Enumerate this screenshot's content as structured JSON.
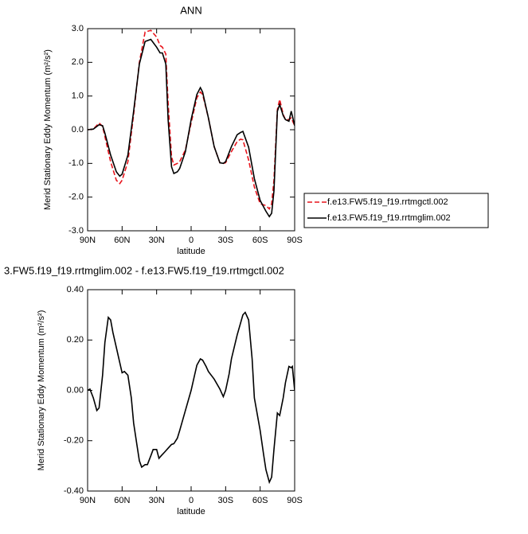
{
  "chart_data": [
    {
      "type": "line",
      "title": "ANN",
      "x_label": "latitude",
      "y_label": "Merid Stationary Eddy Momentum (m²/s²)",
      "x": [
        90,
        85,
        80,
        77,
        75,
        70,
        65,
        62,
        60,
        55,
        50,
        45,
        40,
        35,
        30,
        27,
        25,
        22,
        20,
        17,
        15,
        12,
        10,
        5,
        0,
        -5,
        -8,
        -10,
        -15,
        -20,
        -25,
        -28,
        -30,
        -35,
        -40,
        -43,
        -45,
        -50,
        -55,
        -60,
        -65,
        -68,
        -70,
        -72,
        -75,
        -77,
        -80,
        -82,
        -85,
        -87,
        -90
      ],
      "xlim": [
        90,
        -90
      ],
      "xticks": [
        {
          "value": 90,
          "label": "90N"
        },
        {
          "value": 60,
          "label": "60N"
        },
        {
          "value": 30,
          "label": "30N"
        },
        0,
        {
          "value": -30,
          "label": "30S"
        },
        {
          "value": -60,
          "label": "60S"
        },
        {
          "value": -90,
          "label": "90S"
        }
      ],
      "ylim": [
        -3,
        3
      ],
      "yticks": [
        {
          "value": 3,
          "label": "3.0"
        },
        {
          "value": 2,
          "label": "2.0"
        },
        {
          "value": 1,
          "label": "1.0"
        },
        {
          "value": 0,
          "label": "0.0"
        },
        {
          "value": -1,
          "label": "-1.0"
        },
        {
          "value": -2,
          "label": "-2.0"
        },
        {
          "value": -3,
          "label": "-3.0"
        }
      ],
      "legend": "right",
      "series": [
        {
          "name": "f.e13.FW5.f19_f19.rrtmgctl.002",
          "color": "#e8141c",
          "dashed": true,
          "values": [
            0.0,
            0.02,
            0.2,
            0.1,
            -0.2,
            -0.95,
            -1.5,
            -1.6,
            -1.5,
            -0.95,
            0.45,
            2.0,
            2.9,
            2.95,
            2.75,
            2.5,
            2.45,
            2.25,
            0.8,
            -0.8,
            -1.05,
            -1.0,
            -0.95,
            -0.6,
            0.2,
            0.95,
            1.12,
            1.05,
            0.35,
            -0.5,
            -0.98,
            -1.0,
            -0.98,
            -0.65,
            -0.35,
            -0.28,
            -0.3,
            -0.9,
            -1.7,
            -2.2,
            -2.25,
            -2.35,
            -2.2,
            -1.5,
            0.6,
            0.9,
            0.45,
            0.3,
            0.3,
            0.35,
            0.12
          ]
        },
        {
          "name": "f.e13.FW5.f19_f19.rrtmglim.002",
          "color": "#000000",
          "dashed": false,
          "values": [
            0.0,
            0.02,
            0.15,
            0.12,
            -0.1,
            -0.75,
            -1.25,
            -1.38,
            -1.32,
            -0.75,
            0.55,
            1.95,
            2.62,
            2.68,
            2.45,
            2.28,
            2.28,
            1.95,
            0.3,
            -1.1,
            -1.3,
            -1.25,
            -1.15,
            -0.65,
            0.3,
            1.05,
            1.25,
            1.12,
            0.35,
            -0.5,
            -0.98,
            -1.0,
            -0.95,
            -0.5,
            -0.15,
            -0.08,
            -0.05,
            -0.52,
            -1.45,
            -2.1,
            -2.42,
            -2.58,
            -2.48,
            -1.82,
            0.55,
            0.75,
            0.42,
            0.3,
            0.25,
            0.55,
            0.12
          ]
        }
      ]
    },
    {
      "type": "line",
      "title": "3.FW5.f19_f19.rrtmglim.002 - f.e13.FW5.f19_f19.rrtmgctl.002",
      "x_label": "latitude",
      "y_label": "Merid Stationary Eddy Momentum (m²/s²)",
      "x": [
        90,
        88,
        85,
        82,
        80,
        77,
        75,
        72,
        70,
        68,
        65,
        62,
        60,
        58,
        55,
        52,
        50,
        47,
        45,
        43,
        40,
        38,
        35,
        33,
        30,
        28,
        26,
        23,
        20,
        17,
        15,
        12,
        10,
        5,
        0,
        -3,
        -5,
        -8,
        -10,
        -13,
        -15,
        -20,
        -25,
        -28,
        -30,
        -33,
        -35,
        -40,
        -45,
        -47,
        -50,
        -53,
        -55,
        -60,
        -63,
        -65,
        -68,
        -70,
        -72,
        -75,
        -77,
        -80,
        -82,
        -85,
        -87,
        -88,
        -90
      ],
      "xlim": [
        90,
        -90
      ],
      "xticks": [
        {
          "value": 90,
          "label": "90N"
        },
        {
          "value": 60,
          "label": "60N"
        },
        {
          "value": 30,
          "label": "30N"
        },
        0,
        {
          "value": -30,
          "label": "30S"
        },
        {
          "value": -60,
          "label": "60S"
        },
        {
          "value": -90,
          "label": "90S"
        }
      ],
      "ylim": [
        -0.4,
        0.4
      ],
      "yticks": [
        {
          "value": 0.4,
          "label": "0.40"
        },
        {
          "value": 0.2,
          "label": "0.20"
        },
        {
          "value": 0,
          "label": "0.00"
        },
        {
          "value": -0.2,
          "label": "-0.20"
        },
        {
          "value": -0.4,
          "label": "-0.40"
        }
      ],
      "color": "#000000",
      "values": [
        0.0,
        0.005,
        -0.03,
        -0.08,
        -0.07,
        0.06,
        0.19,
        0.29,
        0.28,
        0.23,
        0.17,
        0.11,
        0.07,
        0.075,
        0.06,
        -0.03,
        -0.13,
        -0.22,
        -0.28,
        -0.305,
        -0.295,
        -0.295,
        -0.26,
        -0.235,
        -0.235,
        -0.27,
        -0.26,
        -0.245,
        -0.23,
        -0.215,
        -0.212,
        -0.19,
        -0.16,
        -0.08,
        0.0,
        0.06,
        0.1,
        0.125,
        0.12,
        0.095,
        0.075,
        0.045,
        0.005,
        -0.025,
        0.0,
        0.065,
        0.125,
        0.22,
        0.3,
        0.31,
        0.28,
        0.125,
        -0.03,
        -0.16,
        -0.255,
        -0.315,
        -0.365,
        -0.345,
        -0.235,
        -0.09,
        -0.1,
        -0.03,
        0.03,
        0.095,
        0.09,
        0.095,
        0.0
      ]
    }
  ]
}
